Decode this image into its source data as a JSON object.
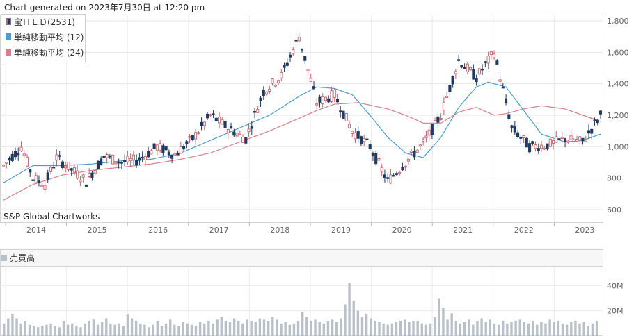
{
  "header": {
    "generated": "Chart generated on 2023年7月30日 at 12:20 pm"
  },
  "credit": "S&P Global Chartworks",
  "colors": {
    "up": "#cc5f6a",
    "down": "#1f3a63",
    "ma12": "#4a9cd4",
    "ma24": "#d97f8c",
    "volume": "#b8c0ca"
  },
  "chart_data": [
    {
      "type": "candlestick",
      "legend": [
        "宝ＨＬＤ(2531)",
        "単純移動平均 (12)",
        "単純移動平均 (24)"
      ],
      "x_tick_labels": [
        "2014",
        "2015",
        "2016",
        "2017",
        "2018",
        "2019",
        "2020",
        "2021",
        "2022",
        "2023"
      ],
      "y_tick_labels": [
        "600",
        "800",
        "1,000",
        "1,200",
        "1,400",
        "1,600",
        "1,800"
      ],
      "ylim": [
        520,
        1840
      ],
      "grid": true,
      "anchors": [
        [
          0,
          880
        ],
        [
          6,
          1000
        ],
        [
          10,
          800
        ],
        [
          14,
          760
        ],
        [
          18,
          930
        ],
        [
          24,
          840
        ],
        [
          28,
          780
        ],
        [
          34,
          940
        ],
        [
          40,
          900
        ],
        [
          46,
          920
        ],
        [
          52,
          1000
        ],
        [
          58,
          950
        ],
        [
          64,
          1050
        ],
        [
          70,
          1200
        ],
        [
          76,
          1120
        ],
        [
          82,
          1050
        ],
        [
          88,
          1350
        ],
        [
          94,
          1450
        ],
        [
          100,
          1700
        ],
        [
          106,
          1280
        ],
        [
          112,
          1330
        ],
        [
          118,
          1100
        ],
        [
          124,
          1000
        ],
        [
          130,
          780
        ],
        [
          136,
          900
        ],
        [
          142,
          1020
        ],
        [
          148,
          1200
        ],
        [
          154,
          1550
        ],
        [
          160,
          1440
        ],
        [
          166,
          1600
        ],
        [
          172,
          1120
        ],
        [
          178,
          1000
        ],
        [
          184,
          1010
        ],
        [
          190,
          1050
        ],
        [
          196,
          1030
        ],
        [
          202,
          1200
        ]
      ],
      "ma12": [
        [
          0,
          770
        ],
        [
          10,
          880
        ],
        [
          20,
          880
        ],
        [
          30,
          890
        ],
        [
          40,
          910
        ],
        [
          50,
          920
        ],
        [
          60,
          960
        ],
        [
          70,
          1040
        ],
        [
          80,
          1120
        ],
        [
          90,
          1200
        ],
        [
          100,
          1320
        ],
        [
          106,
          1380
        ],
        [
          112,
          1370
        ],
        [
          118,
          1330
        ],
        [
          124,
          1200
        ],
        [
          130,
          1060
        ],
        [
          136,
          960
        ],
        [
          142,
          930
        ],
        [
          148,
          1060
        ],
        [
          154,
          1250
        ],
        [
          160,
          1380
        ],
        [
          164,
          1410
        ],
        [
          170,
          1380
        ],
        [
          176,
          1230
        ],
        [
          182,
          1080
        ],
        [
          190,
          1030
        ],
        [
          196,
          1040
        ],
        [
          202,
          1080
        ]
      ],
      "ma24": [
        [
          0,
          660
        ],
        [
          10,
          760
        ],
        [
          20,
          820
        ],
        [
          30,
          850
        ],
        [
          40,
          870
        ],
        [
          50,
          890
        ],
        [
          60,
          920
        ],
        [
          70,
          960
        ],
        [
          80,
          1030
        ],
        [
          90,
          1100
        ],
        [
          100,
          1180
        ],
        [
          106,
          1230
        ],
        [
          112,
          1270
        ],
        [
          120,
          1280
        ],
        [
          130,
          1240
        ],
        [
          136,
          1200
        ],
        [
          142,
          1150
        ],
        [
          148,
          1150
        ],
        [
          154,
          1220
        ],
        [
          160,
          1250
        ],
        [
          166,
          1200
        ],
        [
          170,
          1210
        ],
        [
          176,
          1240
        ],
        [
          182,
          1260
        ],
        [
          190,
          1240
        ],
        [
          196,
          1200
        ],
        [
          202,
          1160
        ]
      ]
    },
    {
      "type": "bar",
      "title": "売買高",
      "y_tick_labels": [
        "20M",
        "40M"
      ],
      "ylim": [
        0,
        55
      ],
      "values": [
        10,
        14,
        17,
        14,
        10,
        12,
        9,
        8,
        7,
        8,
        9,
        10,
        8,
        7,
        12,
        9,
        10,
        8,
        7,
        10,
        12,
        13,
        9,
        11,
        14,
        10,
        9,
        10,
        8,
        17,
        14,
        12,
        10,
        9,
        7,
        9,
        12,
        8,
        10,
        13,
        9,
        8,
        11,
        10,
        9,
        8,
        11,
        10,
        12,
        10,
        13,
        15,
        12,
        11,
        14,
        12,
        10,
        13,
        12,
        11,
        14,
        13,
        12,
        15,
        13,
        10,
        11,
        9,
        10,
        12,
        19,
        15,
        12,
        13,
        11,
        10,
        12,
        13,
        11,
        14,
        25,
        42,
        28,
        20,
        15,
        17,
        14,
        12,
        11,
        10,
        9,
        10,
        11,
        12,
        13,
        11,
        12,
        12,
        10,
        9,
        10,
        15,
        30,
        22,
        13,
        18,
        12,
        10,
        11,
        13,
        9,
        12,
        14,
        11,
        13,
        10,
        9,
        12,
        10,
        11,
        12,
        13,
        11,
        10,
        12,
        9,
        11,
        10,
        13,
        11,
        12,
        10,
        9,
        11,
        12,
        10,
        11,
        8,
        10,
        12
      ]
    }
  ]
}
